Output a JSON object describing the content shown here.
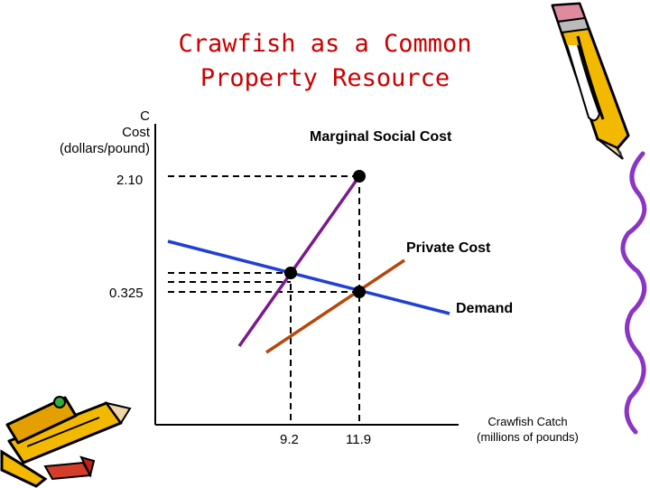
{
  "title": {
    "line1": "Crawfish as a Common",
    "line2": "Property Resource"
  },
  "y_axis": {
    "line1": "C",
    "line2": "Cost",
    "line3": "(dollars/pound)"
  },
  "x_axis": {
    "line1": "Crawfish Catch",
    "line2": "(millions of pounds)"
  },
  "y_ticks": {
    "high": "2.10",
    "low": "0.325"
  },
  "x_ticks": {
    "first": "9.2",
    "second": "11.9"
  },
  "curves": {
    "marginal_social_cost": "Marginal Social Cost",
    "private_cost": "Private Cost",
    "demand": "Demand"
  },
  "colors": {
    "title": "#cc0000",
    "marginal_social_cost": "#7b1a8c",
    "private_cost": "#b5480c",
    "demand": "#1f3fd6"
  },
  "decorations": [
    "pencil-icon-top-right",
    "pencils-icon-bottom-left",
    "squiggle-right"
  ]
}
